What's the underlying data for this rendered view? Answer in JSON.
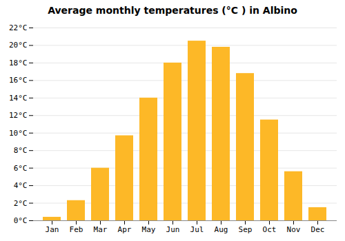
{
  "chart_data": {
    "type": "bar",
    "title": "Average monthly temperatures (°C ) in Albino",
    "categories": [
      "Jan",
      "Feb",
      "Mar",
      "Apr",
      "May",
      "Jun",
      "Jul",
      "Aug",
      "Sep",
      "Oct",
      "Nov",
      "Dec"
    ],
    "values": [
      0.4,
      2.3,
      6.0,
      9.7,
      14.0,
      18.0,
      20.5,
      19.8,
      16.8,
      11.5,
      5.6,
      1.5
    ],
    "color": "#FDB827",
    "ylim": [
      0,
      22
    ],
    "yticks": [
      {
        "value": 0,
        "label": "0°C"
      },
      {
        "value": 2,
        "label": "2°C"
      },
      {
        "value": 4,
        "label": "4°C"
      },
      {
        "value": 6,
        "label": "6°C"
      },
      {
        "value": 8,
        "label": "8°C"
      },
      {
        "value": 10,
        "label": "10°C"
      },
      {
        "value": 12,
        "label": "12°C"
      },
      {
        "value": 14,
        "label": "14°C"
      },
      {
        "value": 16,
        "label": "16°C"
      },
      {
        "value": 18,
        "label": "18°C"
      },
      {
        "value": 20,
        "label": "20°C"
      },
      {
        "value": 22,
        "label": "22°C"
      }
    ],
    "grid": true
  }
}
